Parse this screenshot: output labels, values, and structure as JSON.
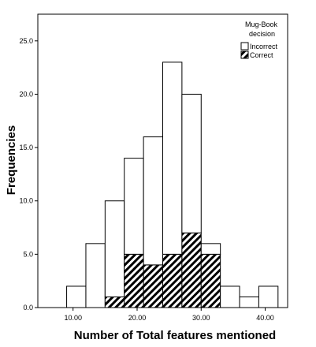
{
  "chart_data": {
    "type": "bar",
    "subtype": "stacked histogram",
    "xlabel": "Number of Total features mentioned",
    "ylabel": "Frequencies",
    "xlim": [
      4.5,
      43.5
    ],
    "ylim": [
      0,
      27.5
    ],
    "bin_width": 3,
    "bin_centers": [
      10.5,
      13.5,
      16.5,
      19.5,
      22.5,
      25.5,
      28.5,
      31.5,
      34.5,
      37.5,
      40.5
    ],
    "x_ticks": [
      "10.00",
      "20.00",
      "30.00",
      "40.00"
    ],
    "x_tick_values": [
      10,
      20,
      30,
      40
    ],
    "y_ticks": [
      "0.0",
      "5.0",
      "10.0",
      "15.0",
      "20.0",
      "25.0"
    ],
    "y_tick_values": [
      0,
      5,
      10,
      15,
      20,
      25
    ],
    "grid": false,
    "legend": {
      "title": "Mug-Book decision",
      "position": "top-right"
    },
    "series": [
      {
        "name": "Correct",
        "fill": "hatched",
        "values": [
          0,
          0,
          1,
          5,
          4,
          5,
          7,
          5,
          0,
          0,
          0
        ]
      },
      {
        "name": "Incorrect",
        "fill": "white",
        "values": [
          2,
          6,
          9,
          9,
          12,
          18,
          13,
          1,
          2,
          1,
          2
        ]
      }
    ]
  },
  "legend": {
    "title_line1": "Mug-Book",
    "title_line2": "decision",
    "items": [
      {
        "label": "Incorrect",
        "fill": "white"
      },
      {
        "label": "Correct",
        "fill": "hatched"
      }
    ]
  },
  "colors": {
    "axis": "#000000",
    "bar_stroke": "#000000",
    "bar_fill": "#ffffff"
  }
}
